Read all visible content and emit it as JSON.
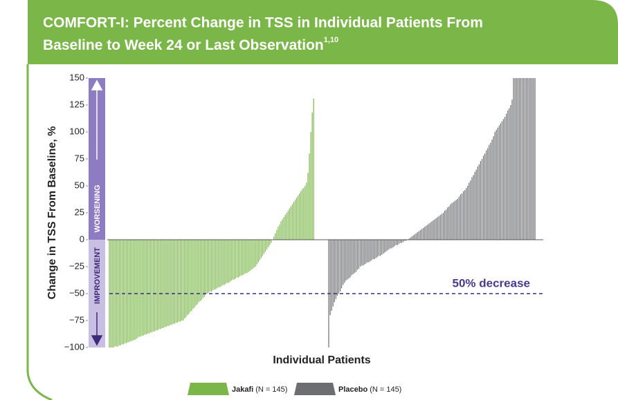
{
  "chart_data": {
    "type": "bar",
    "title_lines": [
      "COMFORT-I: Percent Change in TSS in Individual Patients From",
      "Baseline to Week 24 or Last Observation"
    ],
    "title_superscript": "1,10",
    "y_label": "Change in TSS From Baseline, %",
    "x_label": "Individual Patients",
    "arrow_up_label": "WORSENING",
    "arrow_down_label": "IMPROVEMENT",
    "reference_line": -50,
    "reference_label": "50% decrease",
    "ylim": [
      -100,
      150
    ],
    "yticks": [
      {
        "value": -100,
        "label": "−100"
      },
      {
        "value": -75,
        "label": "−75"
      },
      {
        "value": -50,
        "label": "−50"
      },
      {
        "value": -25,
        "label": "−25"
      },
      0,
      25,
      50,
      75,
      100,
      125,
      150
    ],
    "series": [
      {
        "name": "Jakafi",
        "n_label": "(N = 145)",
        "color": "#7ab648",
        "values": [
          -100,
          -100,
          -100,
          -100,
          -99,
          -99,
          -99,
          -98,
          -98,
          -97,
          -97,
          -96,
          -96,
          -95,
          -95,
          -94,
          -94,
          -93,
          -93,
          -92,
          -91,
          -90,
          -90,
          -89,
          -89,
          -88,
          -88,
          -87,
          -87,
          -86,
          -86,
          -85,
          -85,
          -84,
          -84,
          -83,
          -83,
          -82,
          -82,
          -81,
          -81,
          -80,
          -80,
          -79,
          -79,
          -78,
          -78,
          -77,
          -77,
          -76,
          -76,
          -75,
          -75,
          -73,
          -72,
          -70,
          -69,
          -67,
          -66,
          -64,
          -63,
          -61,
          -60,
          -58,
          -57,
          -56,
          -54,
          -53,
          -51,
          -50,
          -49,
          -48,
          -48,
          -47,
          -46,
          -46,
          -45,
          -44,
          -44,
          -43,
          -42,
          -42,
          -41,
          -40,
          -40,
          -39,
          -38,
          -37,
          -37,
          -36,
          -35,
          -35,
          -34,
          -33,
          -33,
          -32,
          -31,
          -31,
          -30,
          -29,
          -28,
          -27,
          -26,
          -25,
          -23,
          -21,
          -19,
          -17,
          -15,
          -13,
          -11,
          -9,
          -7,
          -5,
          -3,
          0,
          3,
          6,
          9,
          12,
          14,
          17,
          19,
          21,
          23,
          25,
          27,
          29,
          31,
          33,
          35,
          37,
          39,
          41,
          43,
          45,
          47,
          48,
          50,
          53,
          62,
          80,
          100,
          118,
          131
        ]
      },
      {
        "name": "Placebo",
        "n_label": "(N = 145)",
        "color": "#6d6e71",
        "values": [
          -100,
          -70,
          -66,
          -62,
          -58,
          -55,
          -52,
          -50,
          -48,
          -45,
          -42,
          -40,
          -38,
          -37,
          -36,
          -35,
          -33,
          -32,
          -31,
          -30,
          -28,
          -27,
          -25,
          -24,
          -24,
          -23,
          -22,
          -21,
          -21,
          -20,
          -19,
          -18,
          -18,
          -17,
          -16,
          -15,
          -15,
          -14,
          -13,
          -12,
          -11,
          -10,
          -9,
          -8,
          -8,
          -7,
          -6,
          -5,
          -5,
          -4,
          -3,
          -3,
          -2,
          -1,
          -1,
          0,
          1,
          2,
          3,
          4,
          5,
          6,
          7,
          8,
          9,
          10,
          11,
          12,
          13,
          14,
          15,
          16,
          17,
          18,
          19,
          20,
          21,
          22,
          23,
          24,
          25,
          27,
          28,
          30,
          31,
          33,
          34,
          35,
          36,
          37,
          38,
          40,
          42,
          43,
          45,
          46,
          48,
          50,
          53,
          55,
          58,
          60,
          63,
          65,
          68,
          70,
          73,
          75,
          78,
          80,
          83,
          85,
          88,
          90,
          93,
          96,
          100,
          102,
          104,
          106,
          108,
          110,
          112,
          114,
          117,
          120,
          122,
          125,
          130,
          150,
          150,
          150,
          150,
          150,
          150,
          150,
          150,
          150,
          150,
          150,
          150,
          150,
          150,
          150,
          150
        ]
      }
    ]
  }
}
